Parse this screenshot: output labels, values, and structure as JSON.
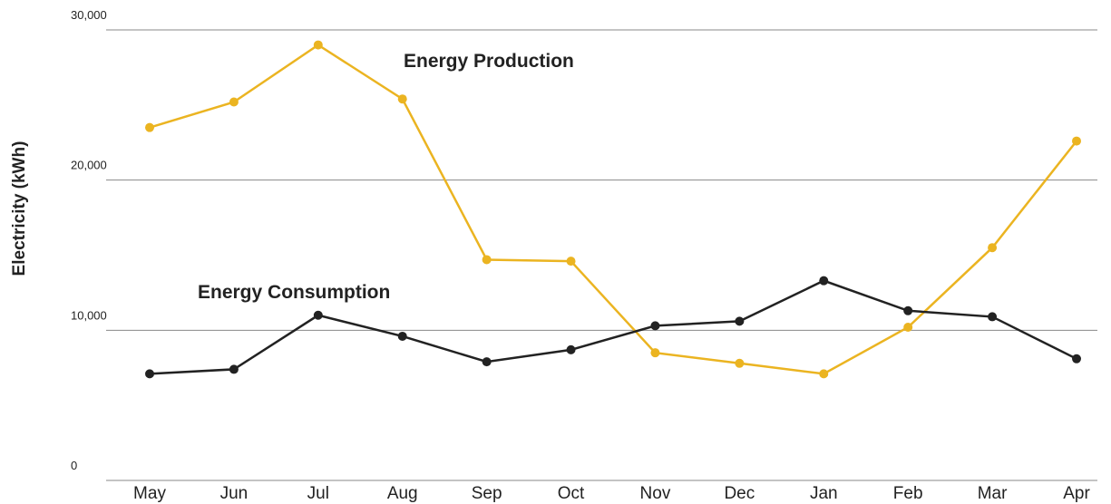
{
  "chart_data": {
    "type": "line",
    "y_label": "Electricity (kWh)",
    "categories": [
      "May",
      "Jun",
      "Jul",
      "Aug",
      "Sep",
      "Oct",
      "Nov",
      "Dec",
      "Jan",
      "Feb",
      "Mar",
      "Apr"
    ],
    "series": [
      {
        "name": "Energy Production",
        "color": "#ebb421",
        "values": [
          23500,
          25200,
          29000,
          25400,
          14700,
          14600,
          8500,
          7800,
          7100,
          10200,
          15500,
          22600
        ]
      },
      {
        "name": "Energy Consumption",
        "color": "#222222",
        "values": [
          7100,
          7400,
          11000,
          9600,
          7900,
          8700,
          10300,
          10600,
          13300,
          11300,
          10900,
          8100
        ]
      }
    ],
    "ylim": [
      0,
      30000
    ],
    "yticks": [
      0,
      {
        "value": 10000,
        "label": "10,000"
      },
      {
        "value": 20000,
        "label": "20,000"
      },
      {
        "value": 30000,
        "label": "30,000"
      }
    ],
    "grid": true
  }
}
